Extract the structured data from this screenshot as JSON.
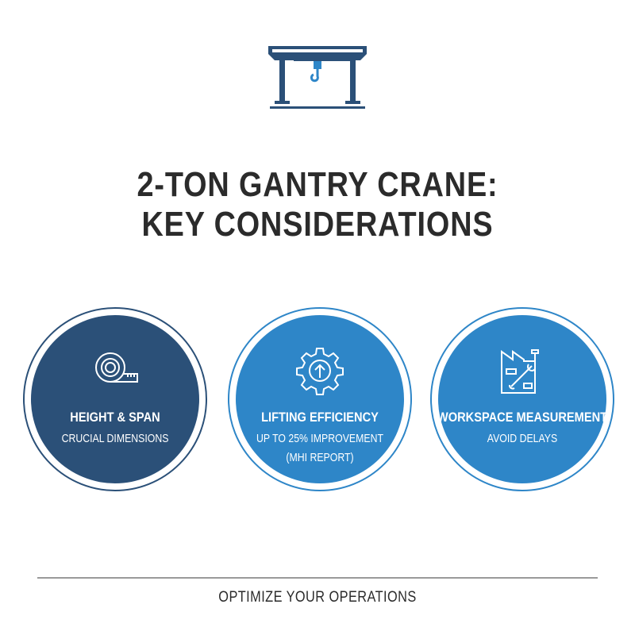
{
  "header": {
    "logo_icon": "gantry-crane-icon",
    "title_line1": "2-TON GANTRY CRANE:",
    "title_line2": "KEY CONSIDERATIONS"
  },
  "colors": {
    "dark_blue": "#2b5078",
    "mid_blue": "#2e86c8",
    "text": "#2b2b2b"
  },
  "cards": [
    {
      "icon": "tape-measure-icon",
      "title": "HEIGHT & SPAN",
      "subtitle": "CRUCIAL DIMENSIONS"
    },
    {
      "icon": "gear-arrow-up-icon",
      "title": "LIFTING EFFICIENCY",
      "subtitle": "UP TO 25% IMPROVEMENT",
      "note": "(MHI REPORT)"
    },
    {
      "icon": "factory-wrench-icon",
      "title": "WORKSPACE MEASUREMENT",
      "subtitle": "AVOID DELAYS"
    }
  ],
  "footer": {
    "text": "OPTIMIZE YOUR OPERATIONS"
  }
}
